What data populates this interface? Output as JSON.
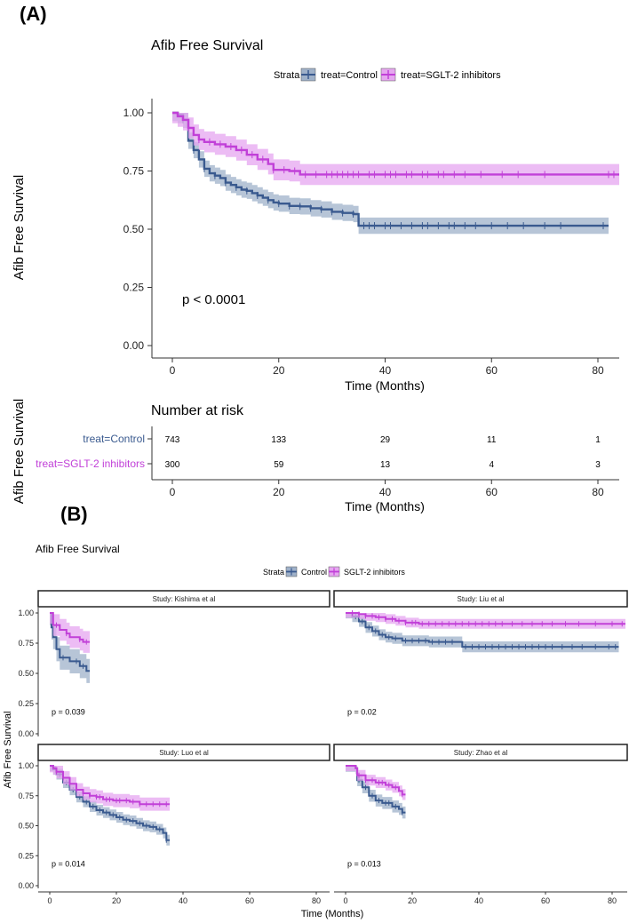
{
  "panels": {
    "a_label": "(A)",
    "b_label": "(B)"
  },
  "colors": {
    "control": "#3A5A8F",
    "sglt2": "#C140D8",
    "control_band": "#9FB1C9",
    "sglt2_band": "#E6A6F0",
    "axis": "#333333",
    "text": "#000000"
  },
  "chart_data": [
    {
      "type": "line",
      "panel": "A",
      "title": "Afib Free Survival",
      "xlabel": "Time (Months)",
      "ylabel": "Afib Free Survival",
      "xlim": [
        0,
        83
      ],
      "ylim": [
        0,
        1
      ],
      "xticks": [
        0,
        20,
        40,
        60,
        80
      ],
      "yticks": [
        "0.00",
        "0.25",
        "0.50",
        "0.75",
        "1.00"
      ],
      "legend": {
        "title": "Strata",
        "entries": [
          "treat=Control",
          "treat=SGLT-2 inhibitors"
        ],
        "position": "top"
      },
      "annotation": "p < 0.0001",
      "series": [
        {
          "name": "treat=Control",
          "color_key": "control",
          "band_width": 0.035,
          "x_end": 82,
          "points": [
            [
              0,
              1.0
            ],
            [
              1,
              0.99
            ],
            [
              2,
              0.97
            ],
            [
              3,
              0.88
            ],
            [
              4,
              0.84
            ],
            [
              5,
              0.8
            ],
            [
              6,
              0.76
            ],
            [
              7,
              0.74
            ],
            [
              8,
              0.73
            ],
            [
              9,
              0.72
            ],
            [
              10,
              0.7
            ],
            [
              11,
              0.69
            ],
            [
              12,
              0.68
            ],
            [
              13,
              0.67
            ],
            [
              14,
              0.665
            ],
            [
              15,
              0.655
            ],
            [
              16,
              0.645
            ],
            [
              17,
              0.635
            ],
            [
              18,
              0.625
            ],
            [
              19,
              0.615
            ],
            [
              20,
              0.61
            ],
            [
              22,
              0.6
            ],
            [
              24,
              0.598
            ],
            [
              26,
              0.59
            ],
            [
              28,
              0.585
            ],
            [
              30,
              0.575
            ],
            [
              32,
              0.57
            ],
            [
              34,
              0.565
            ],
            [
              35,
              0.515
            ],
            [
              82,
              0.515
            ]
          ],
          "censor_x": [
            2,
            4,
            6,
            8,
            10,
            12,
            14,
            16,
            18,
            20,
            22,
            24,
            26,
            28,
            30,
            32,
            34,
            36,
            37,
            38,
            40,
            41,
            43,
            45,
            47,
            48,
            50,
            52,
            53,
            55,
            57,
            60,
            63,
            66,
            70,
            73,
            81
          ]
        },
        {
          "name": "treat=SGLT-2 inhibitors",
          "color_key": "sglt2",
          "band_width": 0.045,
          "x_end": 84,
          "points": [
            [
              0,
              1.0
            ],
            [
              1,
              0.985
            ],
            [
              2,
              0.97
            ],
            [
              3,
              0.935
            ],
            [
              4,
              0.905
            ],
            [
              5,
              0.885
            ],
            [
              6,
              0.875
            ],
            [
              8,
              0.865
            ],
            [
              10,
              0.855
            ],
            [
              12,
              0.84
            ],
            [
              14,
              0.82
            ],
            [
              16,
              0.8
            ],
            [
              18,
              0.78
            ],
            [
              19,
              0.755
            ],
            [
              22,
              0.75
            ],
            [
              24,
              0.735
            ],
            [
              84,
              0.735
            ]
          ],
          "censor_x": [
            3,
            5,
            7,
            9,
            11,
            13,
            15,
            17,
            19,
            21,
            23,
            25,
            27,
            29,
            30,
            31,
            32,
            33,
            34,
            35,
            37,
            38,
            40,
            41,
            42,
            44,
            45,
            47,
            48,
            50,
            51,
            53,
            55,
            58,
            62,
            65,
            70,
            82,
            83
          ]
        }
      ]
    },
    {
      "type": "table",
      "panel": "A",
      "title": "Number at risk",
      "xlabel": "Time (Months)",
      "ylabel": "Afib Free Survival",
      "xticks": [
        0,
        20,
        40,
        60,
        80
      ],
      "rows": [
        {
          "label": "treat=Control",
          "color_key": "control",
          "values": [
            "743",
            "133",
            "29",
            "11",
            "1"
          ]
        },
        {
          "label": "treat=SGLT-2  inhibitors",
          "color_key": "sglt2",
          "values": [
            "300",
            "59",
            "13",
            "4",
            "3"
          ]
        }
      ]
    },
    {
      "type": "line",
      "panel": "B",
      "title": "Afib Free Survival",
      "xlabel": "Time (Months)",
      "ylabel": "Afib Free Survival",
      "xlim": [
        0,
        83
      ],
      "ylim": [
        0,
        1
      ],
      "xticks": [
        0,
        20,
        40,
        60,
        80
      ],
      "yticks": [
        "0.00",
        "0.25",
        "0.50",
        "0.75",
        "1.00"
      ],
      "legend": {
        "title": "Strata",
        "entries": [
          "Control",
          "SGLT-2 inhibitors"
        ],
        "position": "top"
      },
      "facets": [
        {
          "strip": "Study: Kishima et al",
          "p_value": "p = 0.039",
          "control": {
            "band_width": 0.1,
            "x_end": 12,
            "points": [
              [
                0,
                1.0
              ],
              [
                0.5,
                0.88
              ],
              [
                1,
                0.8
              ],
              [
                2,
                0.7
              ],
              [
                3,
                0.63
              ],
              [
                6,
                0.6
              ],
              [
                9,
                0.56
              ],
              [
                11,
                0.52
              ],
              [
                12,
                0.52
              ]
            ],
            "censor_x": [
              4,
              8,
              10
            ]
          },
          "sglt2": {
            "band_width": 0.09,
            "x_end": 12,
            "points": [
              [
                0,
                1.0
              ],
              [
                1,
                0.9
              ],
              [
                3,
                0.86
              ],
              [
                5,
                0.83
              ],
              [
                6,
                0.8
              ],
              [
                9,
                0.78
              ],
              [
                10,
                0.76
              ],
              [
                12,
                0.76
              ]
            ],
            "censor_x": [
              2,
              5,
              9,
              11
            ]
          }
        },
        {
          "strip": "Study: Liu et al",
          "p_value": "p = 0.02",
          "control": {
            "band_width": 0.045,
            "x_end": 82,
            "points": [
              [
                0,
                1.0
              ],
              [
                2,
                0.97
              ],
              [
                4,
                0.93
              ],
              [
                6,
                0.88
              ],
              [
                8,
                0.85
              ],
              [
                10,
                0.82
              ],
              [
                12,
                0.8
              ],
              [
                14,
                0.79
              ],
              [
                17,
                0.77
              ],
              [
                25,
                0.76
              ],
              [
                34,
                0.76
              ],
              [
                35,
                0.72
              ],
              [
                82,
                0.72
              ]
            ],
            "censor_x": [
              3,
              5,
              7,
              9,
              11,
              13,
              15,
              18,
              20,
              22,
              24,
              26,
              28,
              30,
              32,
              36,
              38,
              40,
              42,
              44,
              46,
              48,
              50,
              52,
              54,
              56,
              58,
              60,
              62,
              65,
              68,
              71,
              75,
              79,
              81
            ]
          },
          "sglt2": {
            "band_width": 0.04,
            "x_end": 84,
            "points": [
              [
                0,
                1.0
              ],
              [
                4,
                0.99
              ],
              [
                6,
                0.975
              ],
              [
                9,
                0.965
              ],
              [
                12,
                0.95
              ],
              [
                15,
                0.935
              ],
              [
                18,
                0.92
              ],
              [
                22,
                0.91
              ],
              [
                84,
                0.91
              ]
            ],
            "censor_x": [
              2,
              4,
              6,
              8,
              10,
              12,
              14,
              16,
              18,
              20,
              21,
              23,
              25,
              27,
              29,
              31,
              33,
              35,
              37,
              39,
              41,
              43,
              45,
              47,
              50,
              53,
              56,
              59,
              62,
              66,
              70,
              75,
              80,
              83
            ]
          }
        },
        {
          "strip": "Study: Luo et al",
          "p_value": "p = 0.014",
          "control": {
            "band_width": 0.045,
            "x_end": 36,
            "points": [
              [
                0,
                1.0
              ],
              [
                1,
                0.97
              ],
              [
                2,
                0.93
              ],
              [
                4,
                0.86
              ],
              [
                6,
                0.8
              ],
              [
                8,
                0.74
              ],
              [
                10,
                0.7
              ],
              [
                12,
                0.66
              ],
              [
                14,
                0.63
              ],
              [
                16,
                0.61
              ],
              [
                18,
                0.59
              ],
              [
                20,
                0.57
              ],
              [
                22,
                0.55
              ],
              [
                24,
                0.54
              ],
              [
                26,
                0.52
              ],
              [
                28,
                0.5
              ],
              [
                30,
                0.49
              ],
              [
                32,
                0.47
              ],
              [
                34,
                0.44
              ],
              [
                35,
                0.38
              ],
              [
                36,
                0.38
              ]
            ],
            "censor_x": [
              3,
              5,
              7,
              9,
              11,
              13,
              15,
              17,
              19,
              21,
              23,
              25,
              27,
              29,
              31,
              33,
              35
            ]
          },
          "sglt2": {
            "band_width": 0.055,
            "x_end": 36,
            "points": [
              [
                0,
                1.0
              ],
              [
                1,
                0.98
              ],
              [
                2,
                0.95
              ],
              [
                4,
                0.9
              ],
              [
                6,
                0.85
              ],
              [
                8,
                0.8
              ],
              [
                10,
                0.77
              ],
              [
                12,
                0.75
              ],
              [
                14,
                0.74
              ],
              [
                16,
                0.72
              ],
              [
                19,
                0.71
              ],
              [
                24,
                0.7
              ],
              [
                27,
                0.68
              ],
              [
                36,
                0.68
              ]
            ],
            "censor_x": [
              2,
              4,
              6,
              8,
              10,
              12,
              14,
              15,
              17,
              18,
              20,
              21,
              23,
              25,
              27,
              29,
              31,
              33,
              35
            ]
          }
        },
        {
          "strip": "Study: Zhao et al",
          "p_value": "p = 0.013",
          "control": {
            "band_width": 0.05,
            "x_end": 18,
            "points": [
              [
                0,
                1.0
              ],
              [
                3,
                0.98
              ],
              [
                3.5,
                0.88
              ],
              [
                5,
                0.82
              ],
              [
                7,
                0.75
              ],
              [
                9,
                0.71
              ],
              [
                11,
                0.69
              ],
              [
                14,
                0.66
              ],
              [
                16,
                0.64
              ],
              [
                17,
                0.61
              ],
              [
                18,
                0.61
              ]
            ],
            "censor_x": [
              4,
              6,
              8,
              10,
              12,
              13,
              15,
              17
            ]
          },
          "sglt2": {
            "band_width": 0.045,
            "x_end": 18,
            "points": [
              [
                0,
                1.0
              ],
              [
                3,
                0.98
              ],
              [
                3.5,
                0.92
              ],
              [
                6,
                0.88
              ],
              [
                9,
                0.86
              ],
              [
                12,
                0.84
              ],
              [
                14,
                0.82
              ],
              [
                16,
                0.79
              ],
              [
                17,
                0.76
              ],
              [
                18,
                0.76
              ]
            ],
            "censor_x": [
              4,
              6,
              8,
              10,
              11,
              13,
              15,
              17
            ]
          }
        }
      ]
    }
  ]
}
